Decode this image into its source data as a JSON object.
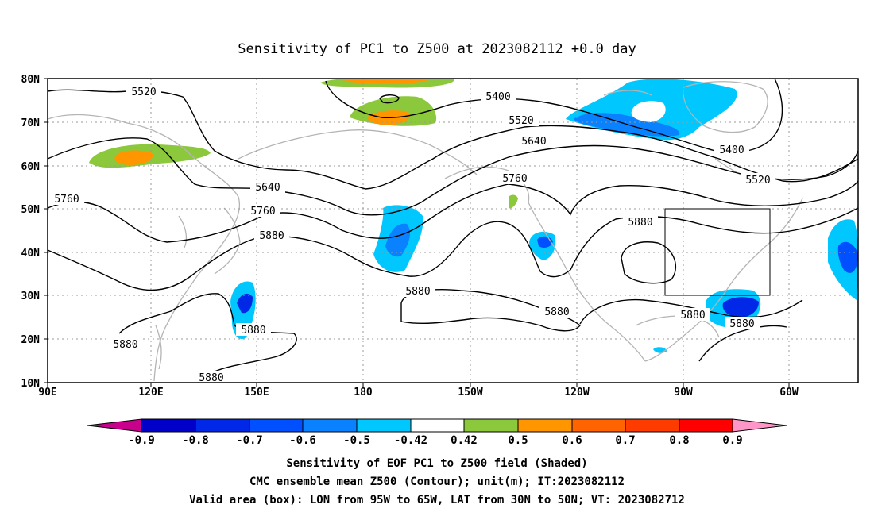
{
  "title": "Sensitivity of PC1 to Z500 at 2023082112 +0.0 day",
  "lat_labels": [
    "80N",
    "70N",
    "60N",
    "50N",
    "40N",
    "30N",
    "20N",
    "10N"
  ],
  "lon_labels": [
    "90E",
    "120E",
    "150E",
    "180",
    "150W",
    "120W",
    "90W",
    "60W"
  ],
  "contour_labels": [
    "5520",
    "5400",
    "5520",
    "5640",
    "5760",
    "5640",
    "5760",
    "5880",
    "5760",
    "5880",
    "5400",
    "5520",
    "5880",
    "5880",
    "5880",
    "5880",
    "5880",
    "5880",
    "5880"
  ],
  "colorbar": {
    "labels": [
      "-0.9",
      "-0.8",
      "-0.7",
      "-0.6",
      "-0.5",
      "-0.42",
      "0.42",
      "0.5",
      "0.6",
      "0.7",
      "0.8",
      "0.9"
    ],
    "colors": [
      "#c8008c",
      "#0000c8",
      "#0028e6",
      "#0050ff",
      "#0a82ff",
      "#00c8ff",
      "#ffffff",
      "#8cc83c",
      "#ff9600",
      "#ff6400",
      "#ff3c00",
      "#ff0000",
      "#ff96c8"
    ]
  },
  "valid_box": {
    "lon_min": -95,
    "lon_max": -65,
    "lat_min": 30,
    "lat_max": 50
  },
  "captions": [
    "Sensitivity of EOF PC1 to Z500 field (Shaded)",
    "CMC ensemble mean Z500 (Contour); unit(m); IT:2023082112",
    "Valid area (box): LON from 95W to 65W, LAT from 30N to 50N; VT: 2023082712"
  ]
}
